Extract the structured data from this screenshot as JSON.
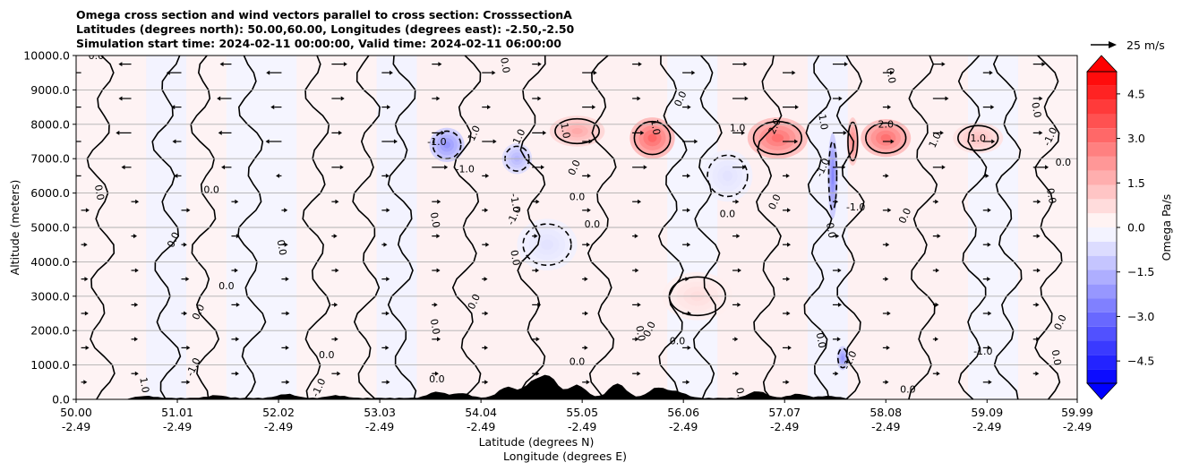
{
  "title": {
    "line1": "Omega cross section and wind vectors parallel to cross section: CrosssectionA",
    "line2": "Latitudes (degrees north): 50.00,60.00, Longitudes (degrees east): -2.50,-2.50",
    "line3": "Simulation start time: 2024-02-11 00:00:00, Valid time: 2024-02-11 06:00:00"
  },
  "chart_data": {
    "type": "heatmap",
    "subtype": "cross-section contourf with contour lines, wind quiver and terrain",
    "ylabel": "Altitude (meters)",
    "xlabel_line1": "Latitude (degrees N)",
    "xlabel_line2": "Longitude (degrees E)",
    "ylim": [
      0,
      10000
    ],
    "yticks": [
      "0.0",
      "1000.0",
      "2000.0",
      "3000.0",
      "4000.0",
      "5000.0",
      "6000.0",
      "7000.0",
      "8000.0",
      "9000.0",
      "10000.0"
    ],
    "xlim": [
      50.0,
      59.99
    ],
    "xticks": [
      {
        "lat": "50.00",
        "lon": "-2.49"
      },
      {
        "lat": "51.01",
        "lon": "-2.49"
      },
      {
        "lat": "52.02",
        "lon": "-2.49"
      },
      {
        "lat": "53.03",
        "lon": "-2.49"
      },
      {
        "lat": "54.04",
        "lon": "-2.49"
      },
      {
        "lat": "55.05",
        "lon": "-2.49"
      },
      {
        "lat": "56.06",
        "lon": "-2.49"
      },
      {
        "lat": "57.07",
        "lon": "-2.49"
      },
      {
        "lat": "58.08",
        "lon": "-2.49"
      },
      {
        "lat": "59.09",
        "lon": "-2.49"
      },
      {
        "lat": "59.99",
        "lon": "-2.49"
      }
    ],
    "grid": "horizontal",
    "colorbar": {
      "label": "Omega Pa/s",
      "range": [
        -5.25,
        5.25
      ],
      "levels": 22,
      "ticks": [
        "4.5",
        "3.0",
        "1.5",
        "0.0",
        "−1.5",
        "−3.0",
        "−4.5"
      ],
      "extend": "both",
      "colormap": "bwr"
    },
    "quiver_key": {
      "label": "25 m/s",
      "magnitude": 25
    },
    "contour_labels": [
      {
        "text": "0.0",
        "lat": 50.2,
        "alt": 9900
      },
      {
        "text": "0.0",
        "lat": 50.2,
        "alt": 6000
      },
      {
        "text": "0.0",
        "lat": 51.0,
        "alt": 4600
      },
      {
        "text": "0.0",
        "lat": 51.35,
        "alt": 6000
      },
      {
        "text": "0.0",
        "lat": 52.02,
        "alt": 4400
      },
      {
        "text": "0.0",
        "lat": 51.25,
        "alt": 2500
      },
      {
        "text": "0.0",
        "lat": 51.5,
        "alt": 3200
      },
      {
        "text": "0.0",
        "lat": 53.55,
        "alt": 5200
      },
      {
        "text": "1.0",
        "lat": 54.0,
        "alt": 7700
      },
      {
        "text": "-1.0",
        "lat": 53.6,
        "alt": 7400
      },
      {
        "text": "0.0",
        "lat": 54.25,
        "alt": 9700
      },
      {
        "text": "1.0",
        "lat": 54.45,
        "alt": 7600
      },
      {
        "text": "-1.0",
        "lat": 53.88,
        "alt": 6600
      },
      {
        "text": "0.0",
        "lat": 54.35,
        "alt": 4100
      },
      {
        "text": "-1.0",
        "lat": 54.4,
        "alt": 5300
      },
      {
        "text": "0.0",
        "lat": 54.6,
        "alt": 10000
      },
      {
        "text": "1.0",
        "lat": 54.85,
        "alt": 7800
      },
      {
        "text": "0.0",
        "lat": 55.0,
        "alt": 6700
      },
      {
        "text": "0.0",
        "lat": 55.0,
        "alt": 5800
      },
      {
        "text": "1.0",
        "lat": 55.75,
        "alt": 7900
      },
      {
        "text": "0.0",
        "lat": 56.06,
        "alt": 8700
      },
      {
        "text": "0.0",
        "lat": 55.15,
        "alt": 5000
      },
      {
        "text": "-1.0",
        "lat": 54.35,
        "alt": 5700
      },
      {
        "text": "2.0",
        "lat": 57.0,
        "alt": 7900
      },
      {
        "text": "1.0",
        "lat": 56.6,
        "alt": 7800
      },
      {
        "text": "-1.0",
        "lat": 57.42,
        "alt": 8100
      },
      {
        "text": "-1.0",
        "lat": 57.48,
        "alt": 6700
      },
      {
        "text": "2.0",
        "lat": 58.08,
        "alt": 7900
      },
      {
        "text": "0.0",
        "lat": 58.1,
        "alt": 9400
      },
      {
        "text": "1.0",
        "lat": 58.6,
        "alt": 7500
      },
      {
        "text": "1.0",
        "lat": 59.0,
        "alt": 7500
      },
      {
        "text": "0.0",
        "lat": 59.55,
        "alt": 8400
      },
      {
        "text": "-1.0",
        "lat": 59.75,
        "alt": 7600
      },
      {
        "text": "0.0",
        "lat": 59.85,
        "alt": 6800
      },
      {
        "text": "0.0",
        "lat": 59.7,
        "alt": 5900
      },
      {
        "text": "0.0",
        "lat": 57.0,
        "alt": 5700
      },
      {
        "text": "0.0",
        "lat": 56.5,
        "alt": 5300
      },
      {
        "text": "0.0",
        "lat": 57.5,
        "alt": 4900
      },
      {
        "text": "0.0",
        "lat": 58.3,
        "alt": 5300
      },
      {
        "text": "-1.0",
        "lat": 57.78,
        "alt": 5500
      },
      {
        "text": "0.0",
        "lat": 53.55,
        "alt": 2100
      },
      {
        "text": "0.0",
        "lat": 54.0,
        "alt": 2800
      },
      {
        "text": "0.0",
        "lat": 55.0,
        "alt": 1000
      },
      {
        "text": "0.0",
        "lat": 55.6,
        "alt": 1900
      },
      {
        "text": "0.0",
        "lat": 55.75,
        "alt": 2000
      },
      {
        "text": "0.0",
        "lat": 56.0,
        "alt": 1600
      },
      {
        "text": "0.0",
        "lat": 57.4,
        "alt": 1700
      },
      {
        "text": "-1.0",
        "lat": 57.75,
        "alt": 1100
      },
      {
        "text": "-1.0",
        "lat": 59.05,
        "alt": 1300
      },
      {
        "text": "0.0",
        "lat": 59.75,
        "alt": 1200
      },
      {
        "text": "0.0",
        "lat": 59.85,
        "alt": 2200
      },
      {
        "text": "0.0",
        "lat": 58.3,
        "alt": 200
      },
      {
        "text": "0.0",
        "lat": 56.6,
        "alt": 100
      },
      {
        "text": "-1.0",
        "lat": 52.45,
        "alt": 300
      },
      {
        "text": "0.0",
        "lat": 53.6,
        "alt": 500
      },
      {
        "text": "1.0",
        "lat": 50.65,
        "alt": 400
      },
      {
        "text": "-1.0",
        "lat": 51.2,
        "alt": 900
      },
      {
        "text": "0.0",
        "lat": 52.5,
        "alt": 1200
      }
    ],
    "anomalies": [
      {
        "sign": "+",
        "lat": 55.75,
        "alt": 7600,
        "w": 0.45,
        "h": 1200,
        "mag": 3.2
      },
      {
        "sign": "+",
        "lat": 57.0,
        "alt": 7600,
        "w": 0.6,
        "h": 1200,
        "mag": 3.0
      },
      {
        "sign": "+",
        "lat": 58.08,
        "alt": 7600,
        "w": 0.5,
        "h": 1100,
        "mag": 3.0
      },
      {
        "sign": "+",
        "lat": 55.0,
        "alt": 7800,
        "w": 0.55,
        "h": 900,
        "mag": 1.8
      },
      {
        "sign": "+",
        "lat": 57.75,
        "alt": 7500,
        "w": 0.12,
        "h": 1400,
        "mag": 2.5
      },
      {
        "sign": "+",
        "lat": 59.0,
        "alt": 7600,
        "w": 0.5,
        "h": 900,
        "mag": 1.3
      },
      {
        "sign": "-",
        "lat": 53.7,
        "alt": 7400,
        "w": 0.35,
        "h": 1000,
        "mag": 2.2
      },
      {
        "sign": "-",
        "lat": 54.4,
        "alt": 7000,
        "w": 0.3,
        "h": 900,
        "mag": 1.5
      },
      {
        "sign": "-",
        "lat": 57.55,
        "alt": 6500,
        "w": 0.1,
        "h": 2500,
        "mag": 2.5
      },
      {
        "sign": "-",
        "lat": 57.65,
        "alt": 1200,
        "w": 0.12,
        "h": 700,
        "mag": 2.2
      },
      {
        "sign": "+",
        "lat": 56.2,
        "alt": 3000,
        "w": 0.7,
        "h": 1400,
        "mag": 0.7
      },
      {
        "sign": "-",
        "lat": 54.7,
        "alt": 4500,
        "w": 0.6,
        "h": 1500,
        "mag": 0.6
      },
      {
        "sign": "-",
        "lat": 56.5,
        "alt": 6500,
        "w": 0.5,
        "h": 1500,
        "mag": 0.6
      }
    ]
  }
}
